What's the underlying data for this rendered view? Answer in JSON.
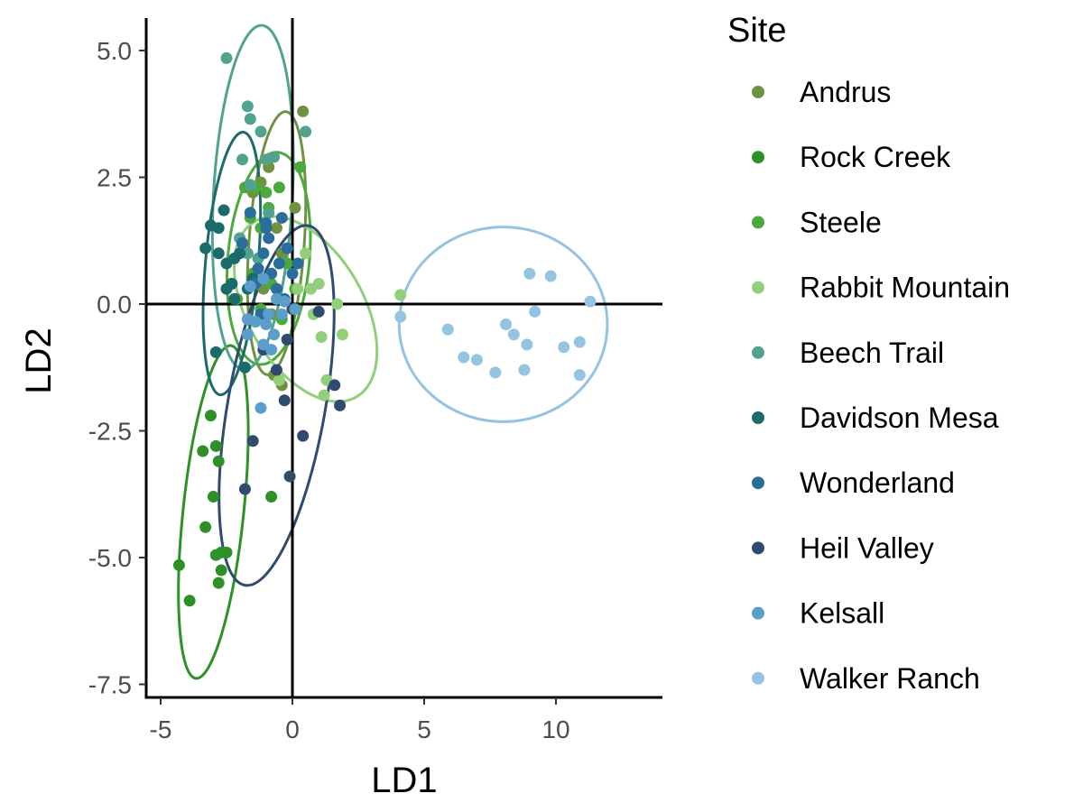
{
  "chart_data": {
    "type": "scatter",
    "xlabel": "LD1",
    "ylabel": "LD2",
    "xlim": [
      -5.6,
      14
    ],
    "ylim": [
      -7.8,
      5.7
    ],
    "x_ticks": [
      -5,
      0,
      5,
      10
    ],
    "y_ticks": [
      5.0,
      2.5,
      0.0,
      -2.5,
      -5.0,
      -7.5
    ],
    "x_tick_labels": [
      "-5",
      "0",
      "5",
      "10"
    ],
    "y_tick_labels": [
      "5.0",
      "2.5",
      "0.0",
      "-2.5",
      "-5.0",
      "-7.5"
    ],
    "reference_lines": {
      "x": 0,
      "y": 0
    },
    "grid": false,
    "legend": {
      "title": "Site",
      "position": "right"
    },
    "series": [
      {
        "name": "Andrus",
        "color": "#6f9242",
        "points": [
          [
            0.4,
            3.8
          ],
          [
            -0.9,
            2.7
          ],
          [
            -1.2,
            2.4
          ],
          [
            -1.5,
            2.2
          ],
          [
            -0.6,
            1.5
          ],
          [
            -1.3,
            0.7
          ],
          [
            -0.4,
            1.0
          ],
          [
            -0.8,
            -0.2
          ],
          [
            -0.4,
            -1.6
          ],
          [
            -0.7,
            -1.4
          ],
          [
            0.1,
            1.9
          ],
          [
            -1.1,
            0.3
          ]
        ],
        "ellipse": {
          "cx": -0.6,
          "cy": 1.2,
          "rx": 1.05,
          "ry": 2.6,
          "angle": 4
        }
      },
      {
        "name": "Rock Creek",
        "color": "#2e9128",
        "points": [
          [
            -3.1,
            -2.2
          ],
          [
            -3.4,
            -2.9
          ],
          [
            -2.9,
            -2.8
          ],
          [
            -2.8,
            -3.1
          ],
          [
            -3.0,
            -3.8
          ],
          [
            -3.3,
            -4.4
          ],
          [
            -2.7,
            -4.9
          ],
          [
            -2.5,
            -4.9
          ],
          [
            -2.9,
            -4.95
          ],
          [
            -2.7,
            -5.25
          ],
          [
            -2.8,
            -5.5
          ],
          [
            -4.3,
            -5.15
          ],
          [
            -3.9,
            -5.85
          ],
          [
            -0.8,
            -3.8
          ],
          [
            -2.3,
            0.4
          ]
        ],
        "ellipse": {
          "cx": -3.0,
          "cy": -4.1,
          "rx": 1.15,
          "ry": 3.3,
          "angle": 6
        }
      },
      {
        "name": "Steele",
        "color": "#4aab3a",
        "points": [
          [
            -1.8,
            2.3
          ],
          [
            -1.4,
            2.3
          ],
          [
            -1.0,
            2.2
          ],
          [
            -0.5,
            2.3
          ],
          [
            -1.6,
            1.7
          ],
          [
            -1.9,
            1.2
          ],
          [
            -1.2,
            1.5
          ],
          [
            0.3,
            2.7
          ],
          [
            -0.9,
            1.9
          ],
          [
            -0.2,
            0.8
          ],
          [
            0.1,
            0.3
          ],
          [
            -1.5,
            0.6
          ],
          [
            -0.8,
            0.4
          ],
          [
            -0.4,
            -0.3
          ],
          [
            -2.1,
            0.1
          ],
          [
            -1.2,
            -0.1
          ]
        ],
        "ellipse": {
          "cx": -0.9,
          "cy": 0.9,
          "rx": 1.55,
          "ry": 2.1,
          "angle": 5
        }
      },
      {
        "name": "Rabbit Mountain",
        "color": "#92cf7a",
        "points": [
          [
            4.1,
            0.18
          ],
          [
            1.7,
            0.0
          ],
          [
            1.0,
            0.4
          ],
          [
            0.8,
            -0.2
          ],
          [
            1.3,
            -1.5
          ],
          [
            1.2,
            -1.8
          ],
          [
            1.9,
            -0.6
          ],
          [
            1.1,
            -0.65
          ],
          [
            0.2,
            0.3
          ],
          [
            0.7,
            0.3
          ],
          [
            -0.5,
            -1.5
          ],
          [
            0.5,
            1.0
          ]
        ],
        "ellipse": {
          "cx": 0.5,
          "cy": -0.1,
          "rx": 2.2,
          "ry": 2.0,
          "angle": -30
        }
      },
      {
        "name": "Beech Trail",
        "color": "#51a38f",
        "points": [
          [
            -2.5,
            4.85
          ],
          [
            -1.7,
            3.9
          ],
          [
            -1.6,
            3.65
          ],
          [
            -1.2,
            3.4
          ],
          [
            0.5,
            3.4
          ],
          [
            -1.9,
            2.85
          ],
          [
            -1.0,
            2.85
          ],
          [
            -0.7,
            2.9
          ],
          [
            -1.6,
            2.35
          ],
          [
            -0.9,
            1.8
          ],
          [
            -2.0,
            1.3
          ],
          [
            -1.7,
            1.0
          ],
          [
            -1.3,
            0.9
          ]
        ],
        "ellipse": {
          "cx": -1.5,
          "cy": 2.1,
          "rx": 1.5,
          "ry": 3.4,
          "angle": 3
        }
      },
      {
        "name": "Davidson Mesa",
        "color": "#1c6b6b",
        "points": [
          [
            -3.1,
            1.55
          ],
          [
            -2.6,
            1.85
          ],
          [
            -3.3,
            1.1
          ],
          [
            -2.8,
            1.0
          ],
          [
            -2.2,
            0.9
          ],
          [
            -2.5,
            0.8
          ],
          [
            -2.3,
            0.4
          ],
          [
            -2.5,
            0.3
          ],
          [
            -2.2,
            0.1
          ],
          [
            -1.7,
            0.3
          ],
          [
            -2.9,
            -0.95
          ],
          [
            -1.8,
            -1.25
          ],
          [
            -2.8,
            1.5
          ],
          [
            -2.0,
            1.0
          ],
          [
            -1.5,
            0.5
          ]
        ],
        "ellipse": {
          "cx": -2.3,
          "cy": 0.8,
          "rx": 1.0,
          "ry": 2.6,
          "angle": 5
        }
      },
      {
        "name": "Wonderland",
        "color": "#2b6e9c",
        "points": [
          [
            -1.6,
            1.8
          ],
          [
            -1.0,
            1.6
          ],
          [
            -0.4,
            1.7
          ],
          [
            -0.9,
            1.3
          ],
          [
            -1.1,
            1.0
          ],
          [
            -0.5,
            0.8
          ],
          [
            -0.2,
            1.1
          ],
          [
            -1.4,
            0.4
          ],
          [
            -0.8,
            0.6
          ],
          [
            -0.3,
            0.1
          ],
          [
            -1.9,
            1.2
          ],
          [
            -1.2,
            -0.2
          ],
          [
            0.0,
            0.6
          ],
          [
            0.2,
            0.8
          ],
          [
            -0.6,
            0.3
          ],
          [
            -1.0,
            1.5
          ],
          [
            -1.3,
            0.7
          ]
        ],
        "ellipse": null
      },
      {
        "name": "Heil Valley",
        "color": "#2f4b6e",
        "points": [
          [
            1.0,
            -0.15
          ],
          [
            1.6,
            -1.6
          ],
          [
            1.8,
            -2.0
          ],
          [
            0.4,
            -2.6
          ],
          [
            -0.1,
            -3.4
          ],
          [
            -1.5,
            -2.7
          ],
          [
            -1.8,
            -3.65
          ],
          [
            -0.3,
            -1.9
          ],
          [
            -0.6,
            -1.3
          ],
          [
            -0.2,
            -0.7
          ],
          [
            -1.1,
            -0.9
          ],
          [
            0.0,
            -0.1
          ]
        ],
        "ellipse": {
          "cx": -0.6,
          "cy": -2.0,
          "rx": 1.85,
          "ry": 3.6,
          "angle": 10
        }
      },
      {
        "name": "Kelsall",
        "color": "#5b9ecb",
        "points": [
          [
            -1.2,
            -2.05
          ],
          [
            -1.1,
            -0.8
          ],
          [
            -1.7,
            -0.6
          ],
          [
            -1.0,
            -0.4
          ],
          [
            -0.7,
            -0.6
          ],
          [
            -0.9,
            -0.2
          ],
          [
            -0.4,
            -0.2
          ],
          [
            -1.4,
            -0.35
          ],
          [
            -1.7,
            -0.3
          ],
          [
            -0.6,
            0.1
          ],
          [
            -1.1,
            0.5
          ],
          [
            0.1,
            -0.1
          ],
          [
            -0.3,
            0.05
          ],
          [
            -1.6,
            0.35
          ],
          [
            -0.8,
            -0.9
          ]
        ],
        "ellipse": null
      },
      {
        "name": "Walker Ranch",
        "color": "#94c4df",
        "points": [
          [
            9.0,
            0.6
          ],
          [
            9.8,
            0.55
          ],
          [
            11.3,
            0.05
          ],
          [
            9.2,
            -0.15
          ],
          [
            4.1,
            -0.25
          ],
          [
            5.9,
            -0.5
          ],
          [
            8.1,
            -0.4
          ],
          [
            8.4,
            -0.6
          ],
          [
            8.9,
            -0.8
          ],
          [
            10.3,
            -0.85
          ],
          [
            10.9,
            -0.75
          ],
          [
            6.5,
            -1.05
          ],
          [
            7.0,
            -1.1
          ],
          [
            7.7,
            -1.35
          ],
          [
            8.8,
            -1.3
          ],
          [
            10.9,
            -1.4
          ]
        ],
        "ellipse": {
          "cx": 8.0,
          "cy": -0.4,
          "rx": 3.95,
          "ry": 1.92,
          "angle": 0
        }
      }
    ]
  }
}
